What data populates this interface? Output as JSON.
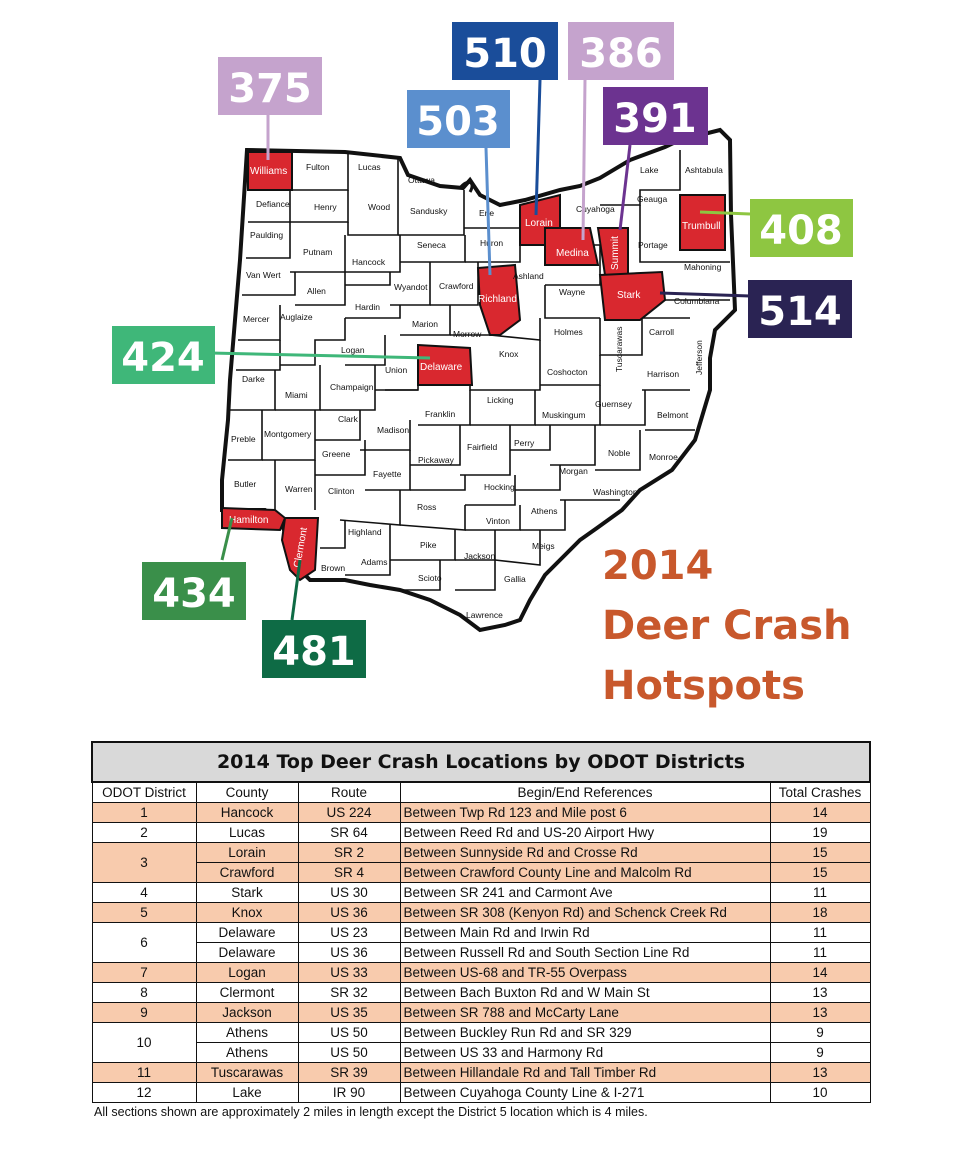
{
  "map": {
    "counties": {
      "williams": "Williams",
      "fulton": "Fulton",
      "lucas": "Lucas",
      "ottawa": "Ottawa",
      "defiance": "Defiance",
      "henry": "Henry",
      "wood": "Wood",
      "sandusky": "Sandusky",
      "erie": "Erie",
      "lorain": "Lorain",
      "cuyahoga": "Cuyahoga",
      "lake": "Lake",
      "ashtabula": "Ashtabula",
      "geauga": "Geauga",
      "trumbull": "Trumbull",
      "paulding": "Paulding",
      "putnam": "Putnam",
      "hancock": "Hancock",
      "seneca": "Seneca",
      "huron": "Huron",
      "medina": "Medina",
      "summit": "Summit",
      "portage": "Portage",
      "mahoning": "Mahoning",
      "van_wert": "Van Wert",
      "allen": "Allen",
      "hardin": "Hardin",
      "wyandot": "Wyandot",
      "crawford": "Crawford",
      "richland": "Richland",
      "ashland": "Ashland",
      "wayne": "Wayne",
      "stark": "Stark",
      "columbiana": "Columbiana",
      "mercer": "Mercer",
      "auglaize": "Auglaize",
      "marion": "Marion",
      "morrow": "Morrow",
      "holmes": "Holmes",
      "carroll": "Carroll",
      "tuscarawas": "Tuscarawas",
      "logan": "Logan",
      "union": "Union",
      "delaware": "Delaware",
      "knox": "Knox",
      "coshocton": "Coshocton",
      "harrison": "Harrison",
      "jefferson": "Jefferson",
      "darke": "Darke",
      "miami": "Miami",
      "champaign": "Champaign",
      "licking": "Licking",
      "muskingum": "Muskingum",
      "guernsey": "Guernsey",
      "belmont": "Belmont",
      "clark": "Clark",
      "franklin": "Franklin",
      "madison": "Madison",
      "preble": "Preble",
      "montgomery": "Montgomery",
      "greene": "Greene",
      "fairfield": "Fairfield",
      "perry": "Perry",
      "noble": "Noble",
      "monroe": "Monroe",
      "fayette": "Fayette",
      "pickaway": "Pickaway",
      "morgan": "Morgan",
      "butler": "Butler",
      "warren": "Warren",
      "clinton": "Clinton",
      "hocking": "Hocking",
      "washington": "Washington",
      "ross": "Ross",
      "athens": "Athens",
      "vinton": "Vinton",
      "hamilton": "Hamilton",
      "clermont": "Clermont",
      "highland": "Highland",
      "pike": "Pike",
      "jackson": "Jackson",
      "meigs": "Meigs",
      "brown": "Brown",
      "adams": "Adams",
      "scioto": "Scioto",
      "gallia": "Gallia",
      "lawrence": "Lawrence"
    },
    "callouts": {
      "c375": "375",
      "c503": "503",
      "c510": "510",
      "c386": "386",
      "c391": "391",
      "c408": "408",
      "c514": "514",
      "c424": "424",
      "c434": "434",
      "c481": "481"
    },
    "colors": {
      "hotspot": "#d9282f",
      "c375": "#c5a3cd",
      "c503": "#5b8fce",
      "c510": "#1a4d9a",
      "c386": "#c5a3cd",
      "c391": "#6c3390",
      "c408": "#8ec641",
      "c514": "#2a2353",
      "c424": "#3fb779",
      "c434": "#3a8f4a",
      "c481": "#0e6b45"
    }
  },
  "title": {
    "line1": "2014",
    "line2": "Deer Crash",
    "line3": "Hotspots",
    "color": "#c8582c"
  },
  "table": {
    "title": "2014 Top Deer Crash Locations by ODOT Districts",
    "headers": [
      "ODOT District",
      "County",
      "Route",
      "Begin/End References",
      "Total Crashes"
    ],
    "shade_color": "#f8cbad",
    "rows": [
      {
        "district": "1",
        "county": "Hancock",
        "route": "US 224",
        "ref": "Between Twp Rd 123 and Mile post 6",
        "crashes": "14"
      },
      {
        "district": "2",
        "county": "Lucas",
        "route": "SR 64",
        "ref": "Between Reed Rd and US-20 Airport Hwy",
        "crashes": "19"
      },
      {
        "district": "3",
        "county": "Lorain",
        "route": "SR 2",
        "ref": "Between Sunnyside Rd and Crosse Rd",
        "crashes": "15"
      },
      {
        "district": "",
        "county": "Crawford",
        "route": "SR 4",
        "ref": "Between Crawford County Line and Malcolm Rd",
        "crashes": "15"
      },
      {
        "district": "4",
        "county": "Stark",
        "route": "US 30",
        "ref": "Between SR 241 and Carmont Ave",
        "crashes": "11"
      },
      {
        "district": "5",
        "county": "Knox",
        "route": "US 36",
        "ref": "Between SR 308 (Kenyon Rd) and Schenck Creek Rd",
        "crashes": "18"
      },
      {
        "district": "6",
        "county": "Delaware",
        "route": "US 23",
        "ref": "Between Main Rd and Irwin Rd",
        "crashes": "11"
      },
      {
        "district": "",
        "county": "Delaware",
        "route": "US 36",
        "ref": "Between Russell Rd and South Section Line Rd",
        "crashes": "11"
      },
      {
        "district": "7",
        "county": "Logan",
        "route": "US 33",
        "ref": "Between US-68 and TR-55 Overpass",
        "crashes": "14"
      },
      {
        "district": "8",
        "county": "Clermont",
        "route": "SR 32",
        "ref": "Between Bach Buxton Rd and W Main St",
        "crashes": "13"
      },
      {
        "district": "9",
        "county": "Jackson",
        "route": "US 35",
        "ref": "Between SR 788 and McCarty Lane",
        "crashes": "13"
      },
      {
        "district": "10",
        "county": "Athens",
        "route": "US 50",
        "ref": "Between Buckley Run Rd and SR 329",
        "crashes": "9"
      },
      {
        "district": "",
        "county": "Athens",
        "route": "US 50",
        "ref": "Between US 33 and Harmony Rd",
        "crashes": "9"
      },
      {
        "district": "11",
        "county": "Tuscarawas",
        "route": "SR 39",
        "ref": "Between Hillandale Rd and Tall Timber Rd",
        "crashes": "13"
      },
      {
        "district": "12",
        "county": "Lake",
        "route": "IR 90",
        "ref": "Between Cuyahoga County Line & I-271",
        "crashes": "10"
      }
    ],
    "footnote": "All sections shown are approximately 2 miles in length except the District 5 location which is 4 miles."
  }
}
